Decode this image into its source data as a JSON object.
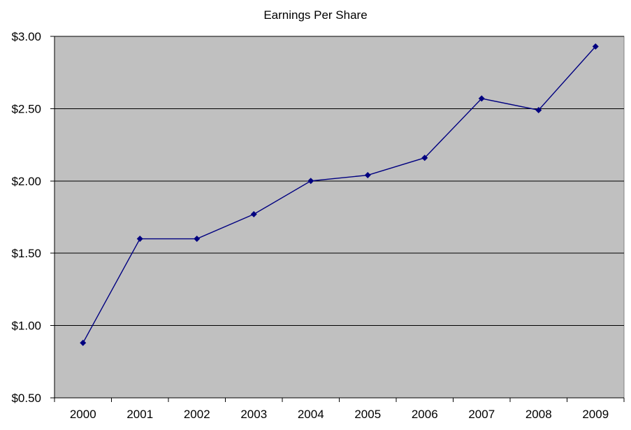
{
  "chart_data": {
    "type": "line",
    "title": "Earnings Per Share",
    "categories": [
      "2000",
      "2001",
      "2002",
      "2003",
      "2004",
      "2005",
      "2006",
      "2007",
      "2008",
      "2009"
    ],
    "values": [
      0.88,
      1.6,
      1.6,
      1.77,
      2.0,
      2.04,
      2.16,
      2.57,
      2.49,
      2.93
    ],
    "xlabel": "",
    "ylabel": "",
    "ylim": [
      0.5,
      3.0
    ],
    "ytick_step": 0.5,
    "ytick_labels": [
      "$0.50",
      "$1.00",
      "$1.50",
      "$2.00",
      "$2.50",
      "$3.00"
    ],
    "grid": true,
    "legend_position": "none",
    "marker": "diamond",
    "colors": {
      "line": "#000080",
      "marker": "#000080",
      "plot_background": "#C0C0C0",
      "plot_border": "#808080",
      "gridline": "#000000",
      "axis": "#000000",
      "title_text": "#000000",
      "page_background": "#FFFFFF"
    }
  }
}
